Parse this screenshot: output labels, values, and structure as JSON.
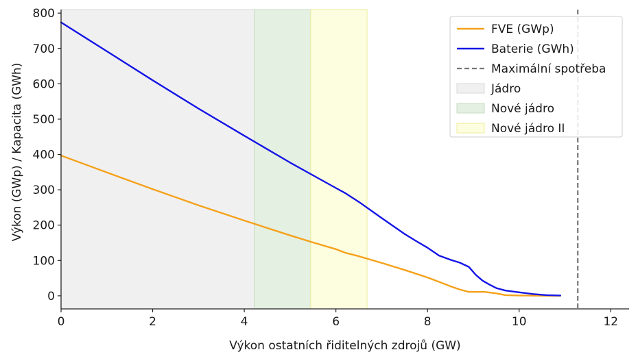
{
  "chart_data": {
    "type": "line",
    "title": "",
    "xlabel": "Výkon ostatních řiditelných zdrojů (GW)",
    "ylabel": "Výkon (GWp) / Kapacita (GWh)",
    "xlim": [
      0,
      12.4
    ],
    "ylim": [
      -37,
      810
    ],
    "xticks": [
      0,
      2,
      4,
      6,
      8,
      10,
      12
    ],
    "xtick_labels": [
      "0",
      "2",
      "4",
      "6",
      "8",
      "10",
      "12"
    ],
    "yticks": [
      0,
      100,
      200,
      300,
      400,
      500,
      600,
      700,
      800
    ],
    "ytick_labels": [
      "0",
      "100",
      "200",
      "300",
      "400",
      "500",
      "600",
      "700",
      "800"
    ],
    "grid": false,
    "legend_position": "top-right",
    "regions": [
      {
        "name": "Jádro",
        "x0": 0,
        "x1": 4.22,
        "color": "#f0f0f0",
        "border": "#d9d9d9"
      },
      {
        "name": "Nové jádro",
        "x0": 4.22,
        "x1": 5.45,
        "color": "#e4f0e1",
        "border": "#c8dcc4"
      },
      {
        "name": "Nové jádro II",
        "x0": 5.45,
        "x1": 6.68,
        "color": "#fdfde0",
        "border": "#ecec9a"
      }
    ],
    "vline": {
      "name": "Maximální spotřeba",
      "x": 11.28,
      "color": "#777777"
    },
    "series": [
      {
        "name": "FVE (GWp)",
        "color": "#f5a11a",
        "x": [
          0,
          1,
          2,
          3,
          4,
          5,
          5.5,
          6,
          6.2,
          6.5,
          7,
          7.5,
          8,
          8.3,
          8.5,
          8.7,
          8.9,
          9.0,
          9.25,
          9.5,
          9.7,
          10.0,
          10.3,
          10.6,
          10.9
        ],
        "y": [
          397,
          349,
          302,
          256,
          213,
          171,
          151,
          132,
          122,
          112,
          93,
          73,
          52,
          37,
          27,
          18,
          11,
          11,
          11,
          7,
          2,
          1,
          0.5,
          0.3,
          0
        ]
      },
      {
        "name": "Baterie (GWh)",
        "color": "#1515e6",
        "x": [
          0,
          1,
          2,
          3,
          4,
          5,
          5.5,
          6,
          6.2,
          6.5,
          7,
          7.5,
          7.75,
          8,
          8.25,
          8.5,
          8.7,
          8.9,
          9.05,
          9.2,
          9.35,
          9.5,
          9.7,
          10.0,
          10.3,
          10.6,
          10.9
        ],
        "y": [
          774,
          692,
          610,
          530,
          453,
          377,
          341,
          305,
          291,
          266,
          220,
          175,
          155,
          136,
          114,
          102,
          94,
          82,
          60,
          43,
          32,
          22,
          15,
          10,
          5,
          2,
          1
        ]
      }
    ]
  }
}
